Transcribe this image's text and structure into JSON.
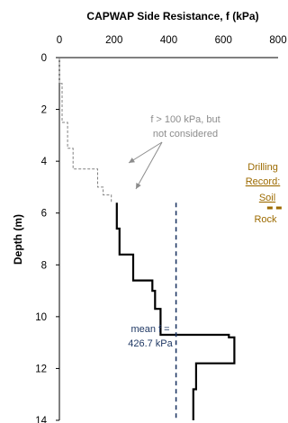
{
  "chart_data": {
    "type": "line",
    "title": "CAPWAP Side Resistance, f (kPa)",
    "xlabel": "",
    "ylabel": "Depth (m)",
    "xlim": [
      0,
      800
    ],
    "ylim": [
      0,
      14
    ],
    "y_inverted": true,
    "x_axis_position": "top",
    "x_ticks": [
      0,
      200,
      400,
      600,
      800
    ],
    "y_ticks": [
      0,
      2,
      4,
      6,
      8,
      10,
      12,
      14
    ],
    "grid": false,
    "legend": "none",
    "series": [
      {
        "style": "dashed",
        "color": "#808080",
        "x": [
          0,
          0,
          10,
          10,
          30,
          30,
          50,
          50,
          140,
          140,
          160,
          160,
          190,
          190
        ],
        "y": [
          0,
          1.0,
          1.0,
          2.5,
          2.5,
          3.5,
          3.5,
          4.3,
          4.3,
          5.0,
          5.0,
          5.3,
          5.3,
          5.6
        ]
      },
      {
        "style": "solid",
        "color": "#000000",
        "x": [
          210,
          210,
          220,
          220,
          270,
          270,
          340,
          340,
          350,
          350,
          370,
          370,
          620,
          620,
          640,
          640,
          500,
          500,
          490,
          490
        ],
        "y": [
          5.6,
          6.6,
          6.6,
          7.6,
          7.6,
          8.6,
          8.6,
          9.0,
          9.0,
          9.7,
          9.7,
          10.7,
          10.7,
          10.8,
          10.8,
          11.8,
          11.8,
          12.8,
          12.8,
          14.0
        ]
      }
    ],
    "mean_line": {
      "x": 426.7,
      "y_from": 5.6,
      "y_to": 14,
      "style": "dashed",
      "color": "#1f3864"
    },
    "boundary": {
      "y": 5.8,
      "x_from": 760,
      "x_to": 800,
      "style": "dashed",
      "color": "#9c6a00"
    },
    "annotations": {
      "not_considered": [
        "f > 100 kPa, but",
        "not considered"
      ],
      "mean": [
        "mean f =",
        "426.7 kPa"
      ],
      "drilling": [
        "Drilling",
        "Record:",
        "Soil",
        "Rock"
      ]
    },
    "colors": {
      "profile": "#000000",
      "excluded": "#808080",
      "mean": "#1f3864",
      "drilling": "#9c6a00"
    }
  }
}
